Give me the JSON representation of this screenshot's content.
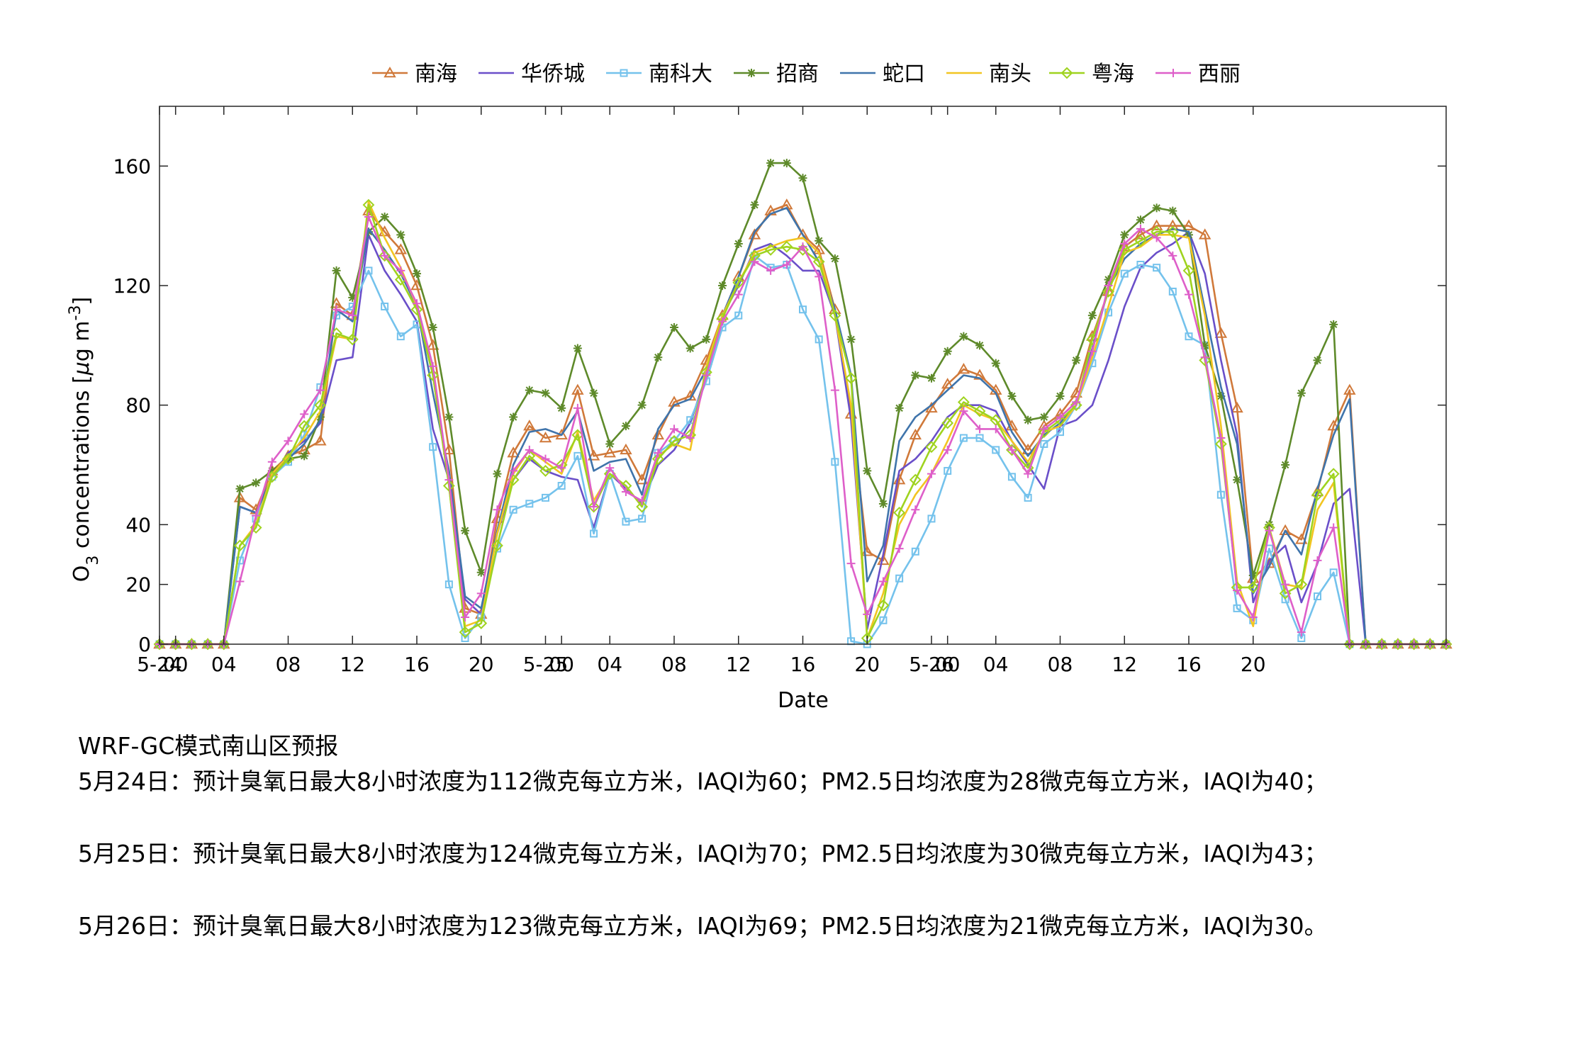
{
  "chart_data": {
    "type": "line",
    "title": "",
    "xlabel": "Date",
    "ylabel": "O3 concentrations [μg m-3]",
    "ylim": [
      0,
      180
    ],
    "yticks": [
      0,
      20,
      40,
      80,
      120,
      160
    ],
    "x_start": "2023-05-24 00:00",
    "x_step_hours": 1,
    "x_tick_labels": [
      {
        "hour": 0,
        "label": "5-24"
      },
      {
        "hour": 1,
        "label": "00"
      },
      {
        "hour": 4,
        "label": "04"
      },
      {
        "hour": 8,
        "label": "08"
      },
      {
        "hour": 12,
        "label": "12"
      },
      {
        "hour": 16,
        "label": "16"
      },
      {
        "hour": 20,
        "label": "20"
      },
      {
        "hour": 24,
        "label": "5-25"
      },
      {
        "hour": 25,
        "label": "00"
      },
      {
        "hour": 28,
        "label": "04"
      },
      {
        "hour": 32,
        "label": "08"
      },
      {
        "hour": 36,
        "label": "12"
      },
      {
        "hour": 40,
        "label": "16"
      },
      {
        "hour": 44,
        "label": "20"
      },
      {
        "hour": 48,
        "label": "5-26"
      },
      {
        "hour": 49,
        "label": "00"
      },
      {
        "hour": 52,
        "label": "04"
      },
      {
        "hour": 56,
        "label": "08"
      },
      {
        "hour": 60,
        "label": "12"
      },
      {
        "hour": 64,
        "label": "16"
      },
      {
        "hour": 68,
        "label": "20"
      }
    ],
    "grid": false,
    "legend_position": "top",
    "series": [
      {
        "name": "南海",
        "color": "#d0793a",
        "marker": "triangle",
        "values": [
          0,
          0,
          0,
          0,
          0,
          49,
          45,
          58,
          63,
          65,
          68,
          114,
          110,
          145,
          138,
          132,
          120,
          100,
          65,
          12,
          10,
          42,
          64,
          73,
          69,
          70,
          85,
          63,
          64,
          65,
          55,
          70,
          81,
          83,
          95,
          110,
          123,
          137,
          145,
          147,
          137,
          132,
          112,
          77,
          31,
          28,
          55,
          70,
          79,
          87,
          92,
          90,
          85,
          73,
          65,
          73,
          77,
          84,
          103,
          118,
          133,
          137,
          140,
          140,
          140,
          137,
          104,
          79,
          22,
          27,
          38,
          35,
          51,
          73,
          85,
          0,
          0,
          0,
          0,
          0,
          0
        ]
      },
      {
        "name": "华侨城",
        "color": "#6a4fc9",
        "marker": "none",
        "values": [
          0,
          0,
          0,
          0,
          0,
          46,
          44,
          56,
          64,
          68,
          74,
          95,
          96,
          137,
          125,
          117,
          108,
          72,
          55,
          15,
          10,
          37,
          55,
          62,
          58,
          56,
          55,
          39,
          57,
          52,
          47,
          60,
          65,
          74,
          90,
          110,
          120,
          132,
          134,
          130,
          125,
          125,
          110,
          75,
          5,
          30,
          58,
          62,
          68,
          76,
          80,
          80,
          78,
          68,
          60,
          52,
          73,
          75,
          80,
          95,
          113,
          126,
          131,
          134,
          138,
          124,
          95,
          70,
          14,
          28,
          33,
          14,
          27,
          47,
          52,
          0,
          0,
          0,
          0,
          0,
          0
        ]
      },
      {
        "name": "南科大",
        "color": "#74c2ec",
        "marker": "square",
        "values": [
          0,
          0,
          0,
          0,
          0,
          28,
          42,
          56,
          61,
          70,
          86,
          110,
          113,
          125,
          113,
          103,
          107,
          66,
          20,
          2,
          9,
          32,
          45,
          47,
          49,
          53,
          63,
          37,
          57,
          41,
          42,
          64,
          68,
          75,
          88,
          106,
          110,
          130,
          126,
          127,
          112,
          102,
          61,
          1,
          0,
          8,
          22,
          31,
          42,
          58,
          69,
          69,
          65,
          56,
          49,
          67,
          71,
          80,
          94,
          111,
          124,
          127,
          126,
          118,
          103,
          100,
          50,
          12,
          8,
          32,
          15,
          2,
          16,
          24,
          0,
          0,
          0,
          0,
          0,
          0,
          0
        ]
      },
      {
        "name": "招商",
        "color": "#5e8a2a",
        "marker": "star",
        "values": [
          0,
          0,
          0,
          0,
          0,
          52,
          54,
          58,
          62,
          63,
          76,
          125,
          116,
          138,
          143,
          137,
          124,
          106,
          76,
          38,
          24,
          57,
          76,
          85,
          84,
          79,
          99,
          84,
          67,
          73,
          80,
          96,
          106,
          99,
          102,
          120,
          134,
          147,
          161,
          161,
          156,
          135,
          129,
          102,
          58,
          47,
          79,
          90,
          89,
          98,
          103,
          100,
          94,
          83,
          75,
          76,
          83,
          95,
          110,
          122,
          137,
          142,
          146,
          145,
          137,
          100,
          83,
          55,
          23,
          40,
          60,
          84,
          95,
          107,
          0,
          0,
          0,
          0,
          0,
          0,
          0
        ]
      },
      {
        "name": "蛇口",
        "color": "#3f74ab",
        "marker": "none",
        "values": [
          0,
          0,
          0,
          0,
          0,
          46,
          44,
          56,
          62,
          67,
          75,
          112,
          108,
          139,
          132,
          124,
          113,
          84,
          58,
          16,
          12,
          38,
          60,
          71,
          72,
          70,
          78,
          58,
          61,
          62,
          50,
          72,
          80,
          82,
          92,
          110,
          123,
          138,
          144,
          146,
          137,
          128,
          112,
          90,
          21,
          33,
          68,
          76,
          80,
          85,
          90,
          89,
          84,
          71,
          63,
          70,
          74,
          80,
          99,
          119,
          129,
          134,
          137,
          139,
          138,
          112,
          86,
          67,
          17,
          26,
          38,
          30,
          52,
          70,
          82,
          0,
          0,
          0,
          0,
          0,
          0
        ]
      },
      {
        "name": "南头",
        "color": "#f2c521",
        "marker": "none",
        "values": [
          0,
          0,
          0,
          0,
          0,
          33,
          40,
          57,
          63,
          69,
          78,
          103,
          102,
          148,
          136,
          126,
          113,
          90,
          53,
          6,
          8,
          37,
          57,
          65,
          61,
          57,
          71,
          48,
          57,
          53,
          46,
          63,
          67,
          65,
          93,
          110,
          121,
          131,
          133,
          135,
          136,
          131,
          110,
          80,
          2,
          17,
          40,
          50,
          57,
          68,
          80,
          77,
          75,
          68,
          61,
          71,
          73,
          80,
          96,
          113,
          131,
          133,
          137,
          137,
          136,
          110,
          73,
          21,
          6,
          39,
          20,
          19,
          45,
          54,
          0,
          0,
          0,
          0,
          0,
          0,
          0
        ]
      },
      {
        "name": "粤海",
        "color": "#9fd31f",
        "marker": "diamond",
        "values": [
          0,
          0,
          0,
          0,
          0,
          33,
          39,
          56,
          62,
          73,
          80,
          104,
          102,
          147,
          130,
          122,
          112,
          90,
          53,
          4,
          7,
          33,
          55,
          63,
          58,
          60,
          70,
          46,
          57,
          53,
          46,
          62,
          68,
          70,
          91,
          109,
          121,
          130,
          132,
          133,
          132,
          128,
          110,
          89,
          2,
          13,
          44,
          55,
          66,
          74,
          81,
          78,
          75,
          65,
          59,
          71,
          75,
          80,
          102,
          118,
          132,
          135,
          138,
          138,
          125,
          95,
          67,
          19,
          19,
          39,
          17,
          20,
          50,
          57,
          0,
          0,
          0,
          0,
          0,
          0,
          0
        ]
      },
      {
        "name": "西丽",
        "color": "#de5fc9",
        "marker": "plus",
        "values": [
          0,
          0,
          0,
          0,
          0,
          21,
          43,
          61,
          68,
          77,
          85,
          112,
          110,
          143,
          130,
          125,
          114,
          93,
          55,
          9,
          17,
          45,
          58,
          65,
          62,
          59,
          79,
          46,
          59,
          51,
          48,
          64,
          72,
          69,
          90,
          108,
          117,
          128,
          125,
          127,
          133,
          123,
          85,
          27,
          10,
          21,
          32,
          45,
          57,
          65,
          78,
          72,
          72,
          65,
          57,
          72,
          76,
          81,
          98,
          120,
          134,
          139,
          136,
          130,
          117,
          96,
          69,
          18,
          9,
          38,
          20,
          4,
          28,
          39,
          0,
          0,
          0,
          0,
          0,
          0,
          0
        ]
      }
    ]
  },
  "forecast": {
    "heading": "WRF-GC模式南山区预报",
    "day1": "5月24日：预计臭氧日最大8小时浓度为112微克每立方米，IAQI为60；PM2.5日均浓度为28微克每立方米，IAQI为40；",
    "day2": "5月25日：预计臭氧日最大8小时浓度为124微克每立方米，IAQI为70；PM2.5日均浓度为30微克每立方米，IAQI为43；",
    "day3": "5月26日：预计臭氧日最大8小时浓度为123微克每立方米，IAQI为69；PM2.5日均浓度为21微克每立方米，IAQI为30。"
  }
}
